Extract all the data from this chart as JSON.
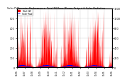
{
  "title": "Solar PV/Inverter Performance  Total PV Panel Power Output & Solar Radiation",
  "legend_labels": [
    "Total kW",
    "Solar Rad"
  ],
  "background_color": "#ffffff",
  "plot_bg_color": "#ffffff",
  "grid_color": "#bbbbbb",
  "bar_color": "#ff0000",
  "line_color": "#0000ff",
  "ylim_left": [
    0,
    600
  ],
  "ylim_right": [
    0,
    1200
  ],
  "num_points": 1500,
  "num_years": 4
}
